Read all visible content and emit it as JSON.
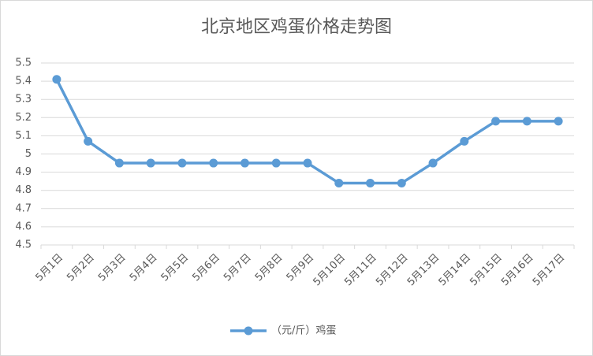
{
  "chart_data": {
    "type": "line",
    "title": "北京地区鸡蛋价格走势图",
    "categories": [
      "5月1日",
      "5月2日",
      "5月3日",
      "5月4日",
      "5月5日",
      "5月6日",
      "5月7日",
      "5月8日",
      "5月9日",
      "5月10日",
      "5月11日",
      "5月12日",
      "5月13日",
      "5月14日",
      "5月15日",
      "5月16日",
      "5月17日"
    ],
    "series": [
      {
        "name": "（元/斤）鸡蛋",
        "color": "#5b9bd5",
        "values": [
          5.41,
          5.07,
          4.95,
          4.95,
          4.95,
          4.95,
          4.95,
          4.95,
          4.95,
          4.84,
          4.84,
          4.84,
          4.95,
          5.07,
          5.18,
          5.18,
          5.18
        ]
      }
    ],
    "ylim": [
      4.5,
      5.5
    ],
    "yticks": [
      4.5,
      4.6,
      4.7,
      4.8,
      4.9,
      5,
      5.1,
      5.2,
      5.3,
      5.4,
      5.5
    ],
    "grid": true,
    "legend": "bottom"
  }
}
